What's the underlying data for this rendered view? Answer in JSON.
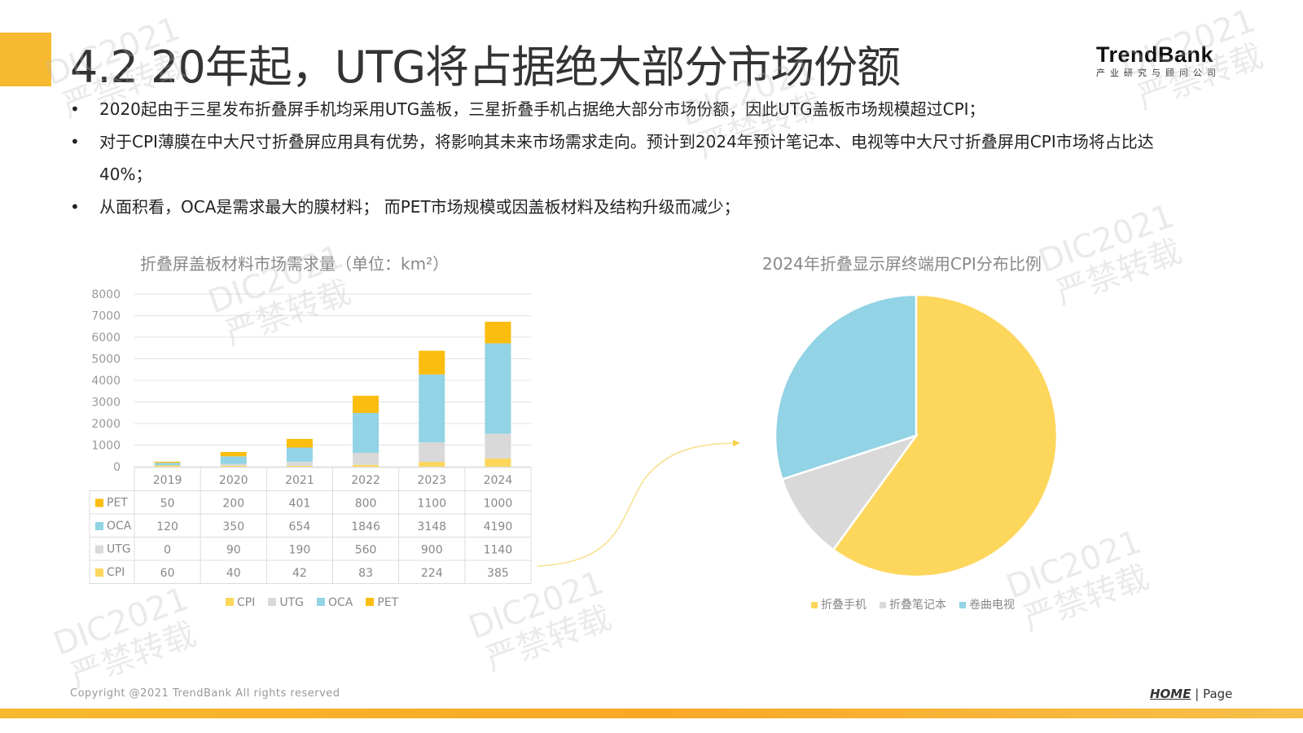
{
  "title": "4.2 20年起，UTG将占据绝大部分市场份额",
  "logo": {
    "name": "TrendBank",
    "tagline": "产业研究与顾问公司"
  },
  "bullets": [
    "2020起由于三星发布折叠屏手机均采用UTG盖板，三星折叠手机占据绝大部分市场份额，因此UTG盖板市场规模超过CPI；",
    "对于CPI薄膜在中大尺寸折叠屏应用具有优势，将影响其未来市场需求走向。预计到2024年预计笔记本、电视等中大尺寸折叠屏用CPI市场将占比达40%；",
    "从面积看，OCA是需求最大的膜材料； 而PET市场规模或因盖板材料及结构升级而减少；"
  ],
  "watermark": [
    "DIC2021",
    "严禁转载"
  ],
  "footer": {
    "copyright": "Copyright @2021 TrendBank All rights reserved",
    "home": "HOME",
    "page": "| Page"
  },
  "colors": {
    "CPI": "#fdd65c",
    "UTG": "#d9d9d9",
    "OCA": "#92d3e5",
    "PET": "#fbbd0e"
  },
  "chart_data": [
    {
      "type": "bar",
      "stacked": true,
      "title": "折叠屏盖板材料市场需求量（单位：km²）",
      "categories": [
        "2019",
        "2020",
        "2021",
        "2022",
        "2023",
        "2024"
      ],
      "series": [
        {
          "name": "CPI",
          "values": [
            60,
            40,
            42,
            83,
            224,
            385
          ]
        },
        {
          "name": "UTG",
          "values": [
            0,
            90,
            190,
            560,
            900,
            1140
          ]
        },
        {
          "name": "OCA",
          "values": [
            120,
            350,
            654,
            1846,
            3148,
            4190
          ]
        },
        {
          "name": "PET",
          "values": [
            50,
            200,
            401,
            800,
            1100,
            1000
          ]
        }
      ],
      "yticks": [
        "0",
        "1000",
        "2000",
        "3000",
        "4000",
        "5000",
        "6000",
        "7000",
        "8000"
      ],
      "ylim": [
        0,
        8000
      ],
      "grid": true,
      "legend": "bottom",
      "table_rows": [
        "PET",
        "OCA",
        "UTG",
        "CPI"
      ]
    },
    {
      "type": "pie",
      "title": "2024年折叠显示屏终端用CPI分布比例",
      "labels": [
        "折叠手机",
        "折叠笔记本",
        "卷曲电视"
      ],
      "values": [
        60,
        10,
        30
      ],
      "legend": "bottom"
    }
  ]
}
